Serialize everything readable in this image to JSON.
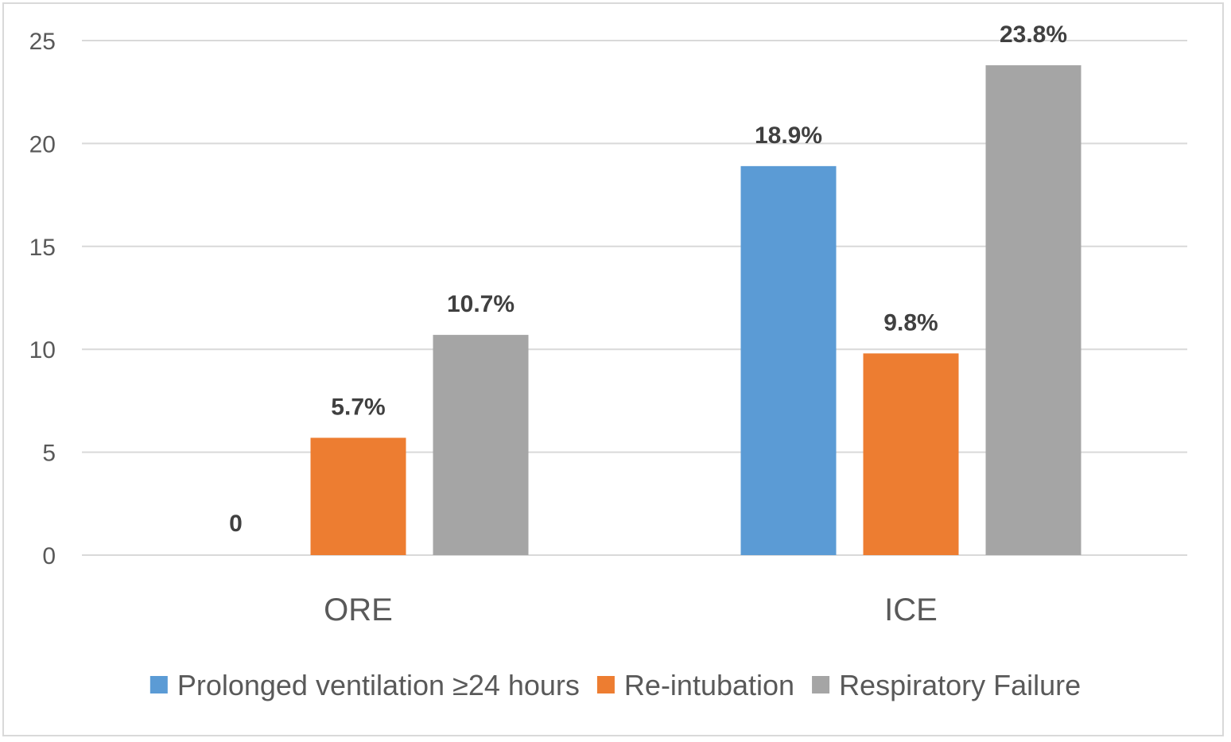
{
  "chart_data": {
    "type": "bar",
    "categories": [
      "ORE",
      "ICE"
    ],
    "series": [
      {
        "name": "Prolonged ventilation ≥24 hours",
        "color": "#5b9bd5",
        "values": [
          0,
          18.9
        ],
        "labels": [
          "0",
          "18.9%"
        ]
      },
      {
        "name": "Re-intubation",
        "color": "#ed7d31",
        "values": [
          5.7,
          9.8
        ],
        "labels": [
          "5.7%",
          "9.8%"
        ]
      },
      {
        "name": "Respiratory Failure",
        "color": "#a5a5a5",
        "values": [
          10.7,
          23.8
        ],
        "labels": [
          "10.7%",
          "23.8%"
        ]
      }
    ],
    "title": "",
    "xlabel": "",
    "ylabel": "",
    "ylim": [
      0,
      25
    ],
    "yticks": [
      0,
      5,
      10,
      15,
      20,
      25
    ],
    "grid": true,
    "legend": "bottom"
  }
}
